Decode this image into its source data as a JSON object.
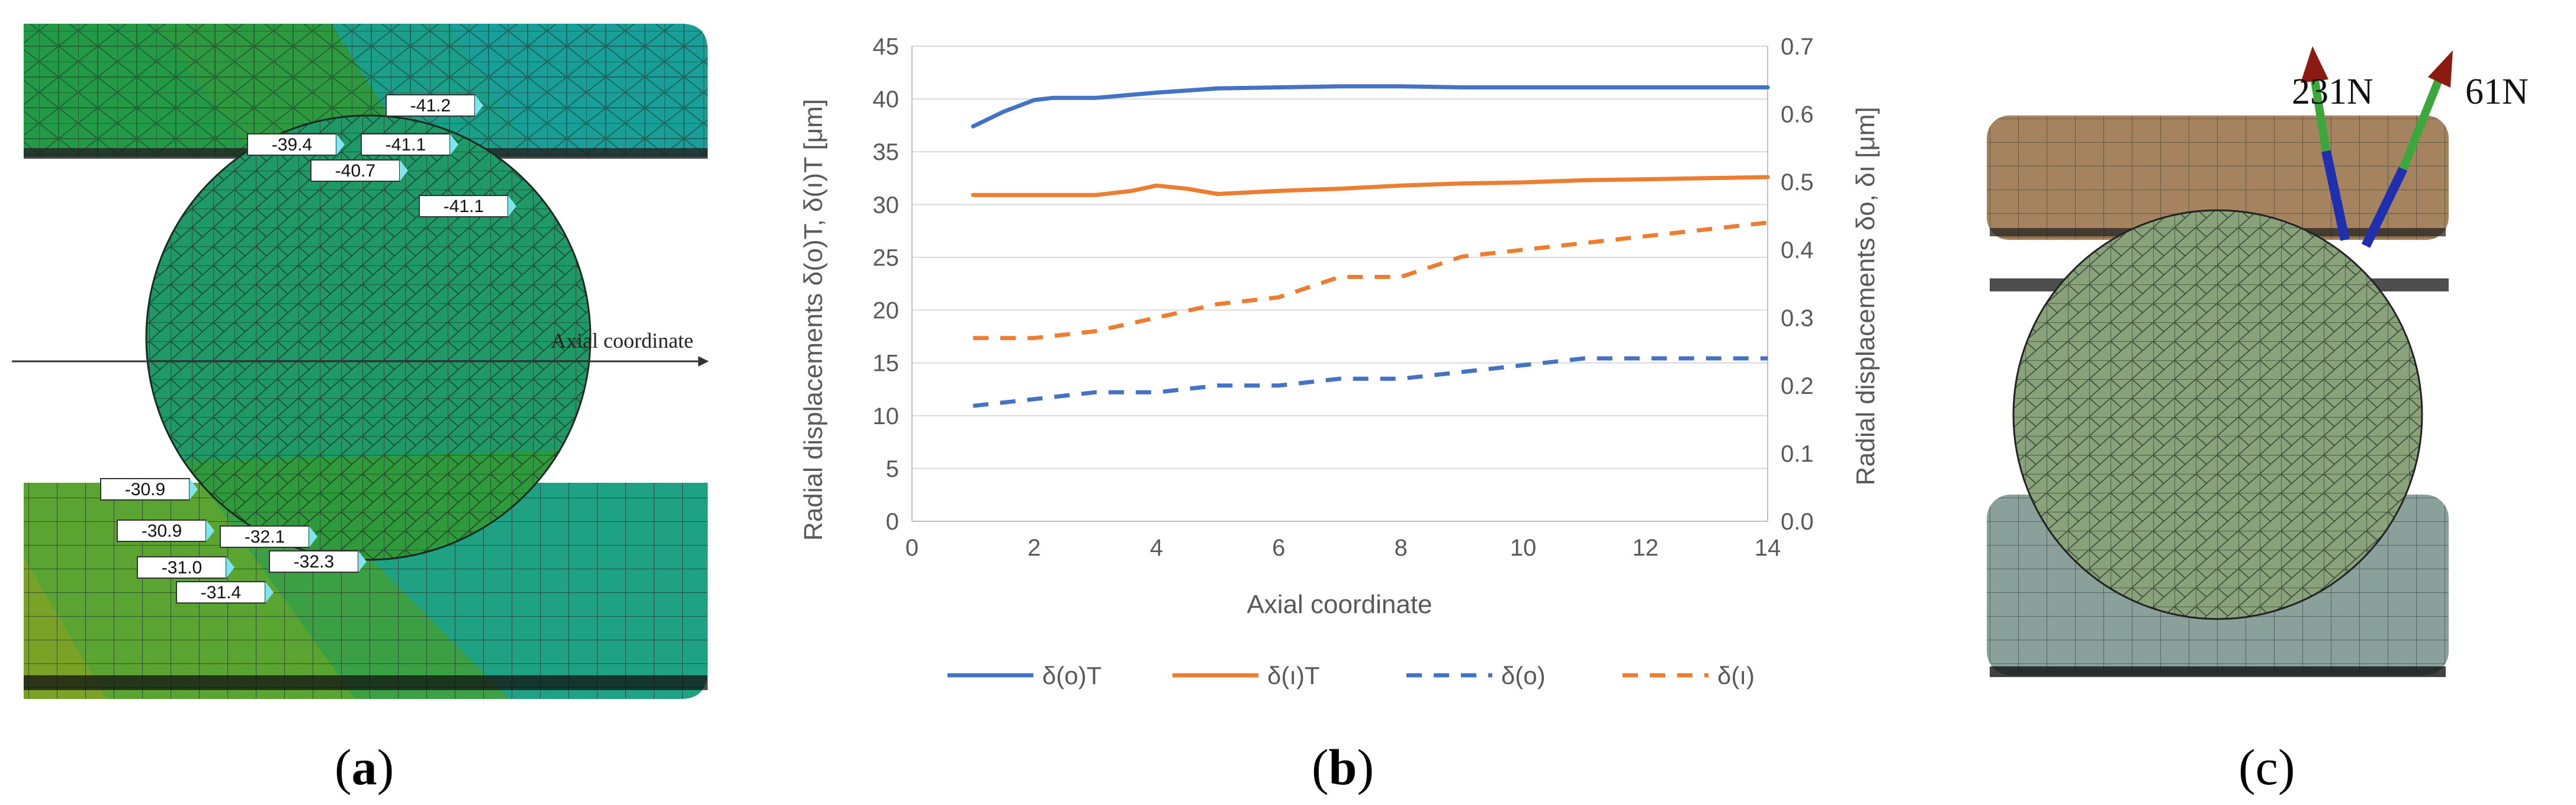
{
  "panel_a": {
    "label": "a",
    "axis_label": "Axial coordinate",
    "upper_values": [
      "-41.2",
      "-39.4",
      "-41.1",
      "-40.7",
      "-41.1"
    ],
    "lower_values": [
      "-30.9",
      "-30.9",
      "-32.1",
      "-31.0",
      "-32.3",
      "-31.4"
    ]
  },
  "panel_c": {
    "label": "c",
    "force_1": "231N",
    "force_2": "61N"
  },
  "chart_data": {
    "label": "b",
    "type": "line",
    "xlabel": "Axial coordinate",
    "ylabel_left": "Radial displacements  δ(o)T, δ(ı)T [μm]",
    "ylabel_right": "Radial displacements δo, δı [μm]",
    "xlim": [
      0,
      14
    ],
    "ylim_left": [
      0,
      45
    ],
    "ylim_right": [
      0,
      0.7
    ],
    "x_ticks": [
      "0",
      "2",
      "4",
      "6",
      "8",
      "10",
      "12",
      "14"
    ],
    "y_ticks_left": [
      "0",
      "5",
      "10",
      "15",
      "20",
      "25",
      "30",
      "35",
      "40",
      "45"
    ],
    "y_ticks_right": [
      "0.0",
      "0.1",
      "0.2",
      "0.3",
      "0.4",
      "0.5",
      "0.6",
      "0.7"
    ],
    "legend_position": "bottom",
    "grid": true,
    "series": [
      {
        "name": "δ(o)T",
        "axis": "left",
        "style": "solid",
        "color": "#4472c4",
        "x": [
          1,
          1.5,
          2,
          2.3,
          3,
          4,
          5,
          6,
          7,
          8,
          9,
          10,
          11,
          12,
          13,
          14
        ],
        "y": [
          37.4,
          38.8,
          39.9,
          40.1,
          40.1,
          40.6,
          41.0,
          41.1,
          41.2,
          41.2,
          41.1,
          41.1,
          41.1,
          41.1,
          41.1,
          41.1
        ]
      },
      {
        "name": "δ(ı)T",
        "axis": "left",
        "style": "solid",
        "color": "#ed7d31",
        "x": [
          1,
          2,
          3,
          3.6,
          4,
          4.5,
          5,
          6,
          7,
          8,
          9,
          10,
          11,
          12,
          13,
          14
        ],
        "y": [
          30.9,
          30.9,
          30.9,
          31.3,
          31.8,
          31.5,
          31.0,
          31.3,
          31.5,
          31.8,
          32.0,
          32.1,
          32.3,
          32.4,
          32.5,
          32.6
        ]
      },
      {
        "name": "δ(o)",
        "axis": "right",
        "style": "dashed",
        "color": "#4472c4",
        "x": [
          1,
          2,
          3,
          4,
          5,
          6,
          7,
          8,
          9,
          10,
          11,
          12,
          13,
          14
        ],
        "y": [
          0.17,
          0.18,
          0.19,
          0.19,
          0.2,
          0.2,
          0.21,
          0.21,
          0.22,
          0.23,
          0.24,
          0.24,
          0.24,
          0.24
        ]
      },
      {
        "name": "δ(ı)",
        "axis": "right",
        "style": "dashed",
        "color": "#ed7d31",
        "x": [
          1,
          2,
          3,
          4,
          5,
          6,
          7,
          8,
          9,
          10,
          11,
          12,
          13,
          14
        ],
        "y": [
          0.27,
          0.27,
          0.28,
          0.3,
          0.32,
          0.33,
          0.36,
          0.36,
          0.39,
          0.4,
          0.41,
          0.42,
          0.43,
          0.44
        ]
      }
    ]
  }
}
